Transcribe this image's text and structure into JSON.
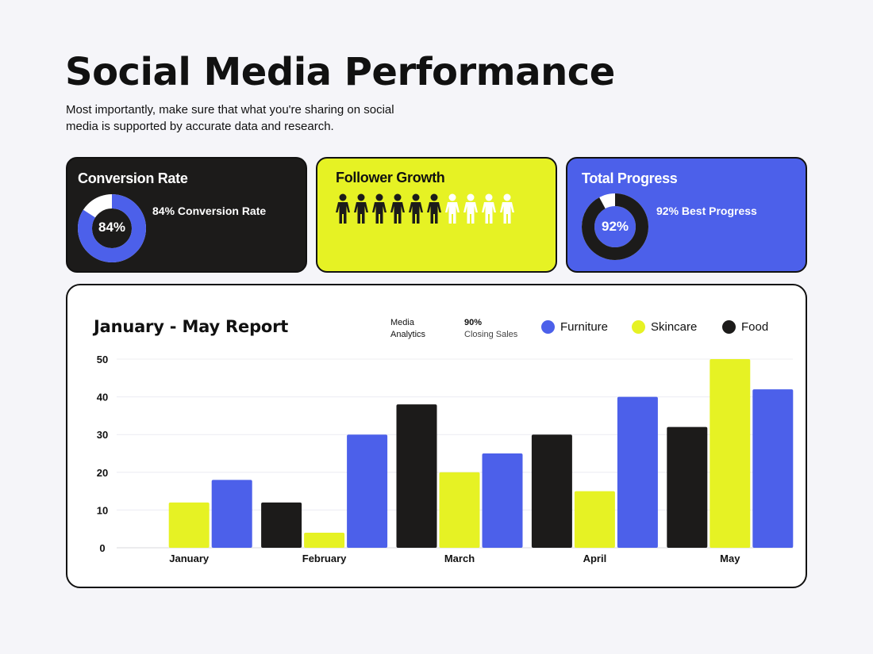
{
  "header": {
    "title": "Social Media Performance",
    "subtitle": "Most importantly, make sure that what you're sharing on social media is supported by accurate data and research."
  },
  "colors": {
    "black": "#1c1b1a",
    "lime": "#e6f224",
    "blue": "#4c60ea",
    "white": "#ffffff"
  },
  "cards": {
    "conversion": {
      "title": "Conversion Rate",
      "value_label": "84%",
      "caption": "84% Conversion Rate",
      "fraction": 0.84
    },
    "follower": {
      "title": "Follower Growth",
      "filled_count": 6,
      "total_count": 10
    },
    "progress": {
      "title": "Total Progress",
      "value_label": "92%",
      "caption": "92% Best Progress",
      "fraction": 0.92
    }
  },
  "report": {
    "title": "January - May Report",
    "meta1_line1": "Media",
    "meta1_line2": "Analytics",
    "meta2_line1": "90%",
    "meta2_line2": "Closing Sales"
  },
  "chart_data": {
    "type": "bar",
    "categories": [
      "January",
      "February",
      "March",
      "April",
      "May"
    ],
    "series": [
      {
        "name": "Food",
        "color": "#1c1b1a",
        "values": [
          0,
          12,
          38,
          30,
          32
        ]
      },
      {
        "name": "Skincare",
        "color": "#e6f224",
        "values": [
          12,
          4,
          20,
          15,
          50
        ]
      },
      {
        "name": "Furniture",
        "color": "#4c60ea",
        "values": [
          18,
          30,
          25,
          40,
          42
        ]
      }
    ],
    "legend_order": [
      "Furniture",
      "Skincare",
      "Food"
    ],
    "yticks": [
      0,
      10,
      20,
      30,
      40,
      50
    ],
    "ylim": [
      0,
      50
    ],
    "grid": true,
    "legend": "top-right"
  }
}
